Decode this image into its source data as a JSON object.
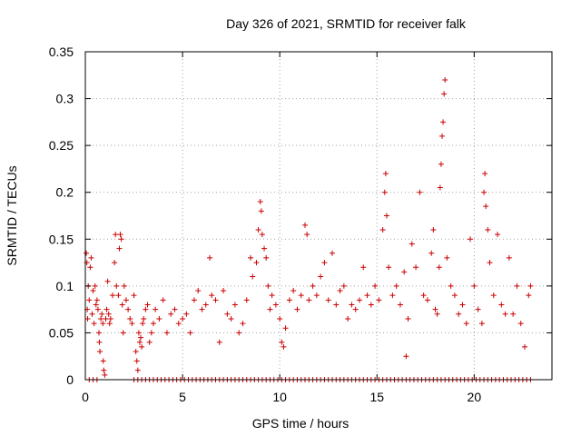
{
  "chart_data": {
    "type": "scatter",
    "title": "Day 326 of 2021, SRMTID for receiver falk",
    "xlabel": "GPS time / hours",
    "ylabel": "SRMTID / TECUs",
    "xlim": [
      0,
      24
    ],
    "ylim": [
      0,
      0.35
    ],
    "xticks": [
      0,
      5,
      10,
      15,
      20
    ],
    "xtick_labels": [
      "0",
      "5",
      "10",
      "15",
      "20"
    ],
    "yticks": [
      0,
      0.05,
      0.1,
      0.15,
      0.2,
      0.25,
      0.3,
      0.35
    ],
    "ytick_labels": [
      "0",
      "0.05",
      "0.1",
      "0.15",
      "0.2",
      "0.25",
      "0.3",
      "0.35"
    ],
    "grid": true,
    "marker": "+",
    "color": "#cc0000",
    "series": [
      {
        "name": "SRMTID",
        "points": [
          [
            0.05,
            0.135
          ],
          [
            0.08,
            0.125
          ],
          [
            0.1,
            0.075
          ],
          [
            0.12,
            0.065
          ],
          [
            0.15,
            0.1
          ],
          [
            0.2,
            0.085
          ],
          [
            0.25,
            0.12
          ],
          [
            0.3,
            0.13
          ],
          [
            0.35,
            0.07
          ],
          [
            0.4,
            0.095
          ],
          [
            0.45,
            0.06
          ],
          [
            0.5,
            0.1
          ],
          [
            0.55,
            0.08
          ],
          [
            0.6,
            0.085
          ],
          [
            0.65,
            0.075
          ],
          [
            0.7,
            0.05
          ],
          [
            0.72,
            0.04
          ],
          [
            0.75,
            0.03
          ],
          [
            0.8,
            0.065
          ],
          [
            0.85,
            0.07
          ],
          [
            0.9,
            0.06
          ],
          [
            0.92,
            0.02
          ],
          [
            0.95,
            0.01
          ],
          [
            1.0,
            0.005
          ],
          [
            1.05,
            0.065
          ],
          [
            1.1,
            0.075
          ],
          [
            1.15,
            0.105
          ],
          [
            1.2,
            0.07
          ],
          [
            1.25,
            0.06
          ],
          [
            1.3,
            0.065
          ],
          [
            1.4,
            0.09
          ],
          [
            1.5,
            0.125
          ],
          [
            1.55,
            0.155
          ],
          [
            1.6,
            0.1
          ],
          [
            1.7,
            0.09
          ],
          [
            1.75,
            0.14
          ],
          [
            1.8,
            0.155
          ],
          [
            1.85,
            0.15
          ],
          [
            1.9,
            0.08
          ],
          [
            1.95,
            0.05
          ],
          [
            2.0,
            0.1
          ],
          [
            2.1,
            0.085
          ],
          [
            2.2,
            0.075
          ],
          [
            2.3,
            0.065
          ],
          [
            2.4,
            0.06
          ],
          [
            2.5,
            0.09
          ],
          [
            2.6,
            0.03
          ],
          [
            2.65,
            0.02
          ],
          [
            2.7,
            0.01
          ],
          [
            2.75,
            0.05
          ],
          [
            2.8,
            0.04
          ],
          [
            2.85,
            0.045
          ],
          [
            2.9,
            0.035
          ],
          [
            2.95,
            0.06
          ],
          [
            3.0,
            0.065
          ],
          [
            3.1,
            0.075
          ],
          [
            3.2,
            0.08
          ],
          [
            3.3,
            0.04
          ],
          [
            3.4,
            0.05
          ],
          [
            3.5,
            0.06
          ],
          [
            3.6,
            0.075
          ],
          [
            3.8,
            0.065
          ],
          [
            4.0,
            0.085
          ],
          [
            4.2,
            0.05
          ],
          [
            4.4,
            0.07
          ],
          [
            4.6,
            0.075
          ],
          [
            4.8,
            0.06
          ],
          [
            5.0,
            0.065
          ],
          [
            5.2,
            0.07
          ],
          [
            5.4,
            0.05
          ],
          [
            5.6,
            0.085
          ],
          [
            5.8,
            0.095
          ],
          [
            6.0,
            0.075
          ],
          [
            6.2,
            0.08
          ],
          [
            6.4,
            0.13
          ],
          [
            6.5,
            0.09
          ],
          [
            6.7,
            0.085
          ],
          [
            6.9,
            0.04
          ],
          [
            7.1,
            0.095
          ],
          [
            7.3,
            0.07
          ],
          [
            7.5,
            0.065
          ],
          [
            7.7,
            0.08
          ],
          [
            7.9,
            0.05
          ],
          [
            8.1,
            0.06
          ],
          [
            8.3,
            0.085
          ],
          [
            8.5,
            0.13
          ],
          [
            8.6,
            0.11
          ],
          [
            8.8,
            0.125
          ],
          [
            8.9,
            0.16
          ],
          [
            9.0,
            0.19
          ],
          [
            9.05,
            0.18
          ],
          [
            9.1,
            0.155
          ],
          [
            9.2,
            0.14
          ],
          [
            9.3,
            0.13
          ],
          [
            9.4,
            0.1
          ],
          [
            9.5,
            0.075
          ],
          [
            9.6,
            0.09
          ],
          [
            9.8,
            0.08
          ],
          [
            10.0,
            0.065
          ],
          [
            10.1,
            0.04
          ],
          [
            10.2,
            0.035
          ],
          [
            10.3,
            0.055
          ],
          [
            10.5,
            0.085
          ],
          [
            10.7,
            0.095
          ],
          [
            10.9,
            0.075
          ],
          [
            11.1,
            0.09
          ],
          [
            11.3,
            0.165
          ],
          [
            11.4,
            0.155
          ],
          [
            11.5,
            0.085
          ],
          [
            11.7,
            0.1
          ],
          [
            11.9,
            0.09
          ],
          [
            12.1,
            0.11
          ],
          [
            12.3,
            0.125
          ],
          [
            12.5,
            0.085
          ],
          [
            12.7,
            0.135
          ],
          [
            12.9,
            0.08
          ],
          [
            13.1,
            0.095
          ],
          [
            13.3,
            0.1
          ],
          [
            13.5,
            0.065
          ],
          [
            13.7,
            0.08
          ],
          [
            13.9,
            0.075
          ],
          [
            14.1,
            0.085
          ],
          [
            14.3,
            0.12
          ],
          [
            14.5,
            0.09
          ],
          [
            14.7,
            0.08
          ],
          [
            14.9,
            0.1
          ],
          [
            15.1,
            0.085
          ],
          [
            15.3,
            0.16
          ],
          [
            15.4,
            0.2
          ],
          [
            15.45,
            0.22
          ],
          [
            15.5,
            0.175
          ],
          [
            15.6,
            0.12
          ],
          [
            15.8,
            0.09
          ],
          [
            16.0,
            0.1
          ],
          [
            16.2,
            0.08
          ],
          [
            16.4,
            0.115
          ],
          [
            16.5,
            0.025
          ],
          [
            16.6,
            0.065
          ],
          [
            16.8,
            0.145
          ],
          [
            17.0,
            0.12
          ],
          [
            17.2,
            0.2
          ],
          [
            17.4,
            0.09
          ],
          [
            17.6,
            0.085
          ],
          [
            17.8,
            0.135
          ],
          [
            17.9,
            0.16
          ],
          [
            18.0,
            0.075
          ],
          [
            18.1,
            0.07
          ],
          [
            18.2,
            0.12
          ],
          [
            18.25,
            0.205
          ],
          [
            18.3,
            0.23
          ],
          [
            18.35,
            0.26
          ],
          [
            18.4,
            0.275
          ],
          [
            18.45,
            0.305
          ],
          [
            18.5,
            0.32
          ],
          [
            18.6,
            0.13
          ],
          [
            18.8,
            0.1
          ],
          [
            19.0,
            0.09
          ],
          [
            19.2,
            0.07
          ],
          [
            19.4,
            0.08
          ],
          [
            19.6,
            0.06
          ],
          [
            19.8,
            0.15
          ],
          [
            20.0,
            0.1
          ],
          [
            20.2,
            0.075
          ],
          [
            20.4,
            0.06
          ],
          [
            20.5,
            0.2
          ],
          [
            20.55,
            0.22
          ],
          [
            20.6,
            0.185
          ],
          [
            20.7,
            0.16
          ],
          [
            20.8,
            0.125
          ],
          [
            21.0,
            0.09
          ],
          [
            21.2,
            0.155
          ],
          [
            21.4,
            0.08
          ],
          [
            21.6,
            0.07
          ],
          [
            21.8,
            0.13
          ],
          [
            22.0,
            0.07
          ],
          [
            22.2,
            0.1
          ],
          [
            22.4,
            0.06
          ],
          [
            22.6,
            0.035
          ],
          [
            22.8,
            0.09
          ],
          [
            22.9,
            0.1
          ],
          [
            0.2,
            0.0
          ],
          [
            0.4,
            0.0
          ],
          [
            0.6,
            0.0
          ],
          [
            2.5,
            0.0
          ],
          [
            2.7,
            0.0
          ],
          [
            2.9,
            0.0
          ],
          [
            3.1,
            0.0
          ],
          [
            3.3,
            0.0
          ],
          [
            3.5,
            0.0
          ],
          [
            3.7,
            0.0
          ],
          [
            3.9,
            0.0
          ],
          [
            4.1,
            0.0
          ],
          [
            4.3,
            0.0
          ],
          [
            4.5,
            0.0
          ],
          [
            4.7,
            0.0
          ],
          [
            4.9,
            0.0
          ],
          [
            5.1,
            0.0
          ],
          [
            5.3,
            0.0
          ],
          [
            5.5,
            0.0
          ],
          [
            5.7,
            0.0
          ],
          [
            5.9,
            0.0
          ],
          [
            6.1,
            0.0
          ],
          [
            6.3,
            0.0
          ],
          [
            6.5,
            0.0
          ],
          [
            6.7,
            0.0
          ],
          [
            6.9,
            0.0
          ],
          [
            7.1,
            0.0
          ],
          [
            7.3,
            0.0
          ],
          [
            7.5,
            0.0
          ],
          [
            7.7,
            0.0
          ],
          [
            7.9,
            0.0
          ],
          [
            8.1,
            0.0
          ],
          [
            8.3,
            0.0
          ],
          [
            8.5,
            0.0
          ],
          [
            8.7,
            0.0
          ],
          [
            8.9,
            0.0
          ],
          [
            9.1,
            0.0
          ],
          [
            9.3,
            0.0
          ],
          [
            9.5,
            0.0
          ],
          [
            9.7,
            0.0
          ],
          [
            9.9,
            0.0
          ],
          [
            10.1,
            0.0
          ],
          [
            10.3,
            0.0
          ],
          [
            10.5,
            0.0
          ],
          [
            10.7,
            0.0
          ],
          [
            10.9,
            0.0
          ],
          [
            11.1,
            0.0
          ],
          [
            11.3,
            0.0
          ],
          [
            11.5,
            0.0
          ],
          [
            11.7,
            0.0
          ],
          [
            11.9,
            0.0
          ],
          [
            12.1,
            0.0
          ],
          [
            12.3,
            0.0
          ],
          [
            12.5,
            0.0
          ],
          [
            12.7,
            0.0
          ],
          [
            12.9,
            0.0
          ],
          [
            13.1,
            0.0
          ],
          [
            13.3,
            0.0
          ],
          [
            13.5,
            0.0
          ],
          [
            13.7,
            0.0
          ],
          [
            13.9,
            0.0
          ],
          [
            14.1,
            0.0
          ],
          [
            14.3,
            0.0
          ],
          [
            14.5,
            0.0
          ],
          [
            14.7,
            0.0
          ],
          [
            14.9,
            0.0
          ],
          [
            15.1,
            0.0
          ],
          [
            15.3,
            0.0
          ],
          [
            15.5,
            0.0
          ],
          [
            15.7,
            0.0
          ],
          [
            15.9,
            0.0
          ],
          [
            16.1,
            0.0
          ],
          [
            16.3,
            0.0
          ],
          [
            16.5,
            0.0
          ],
          [
            16.7,
            0.0
          ],
          [
            16.9,
            0.0
          ],
          [
            17.1,
            0.0
          ],
          [
            17.3,
            0.0
          ],
          [
            17.5,
            0.0
          ],
          [
            17.7,
            0.0
          ],
          [
            17.9,
            0.0
          ],
          [
            18.1,
            0.0
          ],
          [
            18.3,
            0.0
          ],
          [
            18.5,
            0.0
          ],
          [
            18.7,
            0.0
          ],
          [
            18.9,
            0.0
          ],
          [
            19.1,
            0.0
          ],
          [
            19.3,
            0.0
          ],
          [
            19.5,
            0.0
          ],
          [
            19.7,
            0.0
          ],
          [
            19.9,
            0.0
          ],
          [
            20.1,
            0.0
          ],
          [
            20.3,
            0.0
          ],
          [
            20.5,
            0.0
          ],
          [
            20.7,
            0.0
          ],
          [
            20.9,
            0.0
          ],
          [
            21.1,
            0.0
          ],
          [
            21.3,
            0.0
          ],
          [
            21.5,
            0.0
          ],
          [
            21.7,
            0.0
          ],
          [
            21.9,
            0.0
          ],
          [
            22.1,
            0.0
          ],
          [
            22.3,
            0.0
          ],
          [
            22.5,
            0.0
          ],
          [
            22.7,
            0.0
          ],
          [
            22.9,
            0.0
          ]
        ]
      }
    ]
  }
}
